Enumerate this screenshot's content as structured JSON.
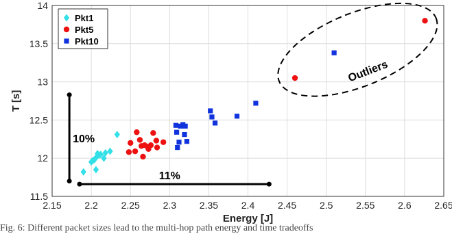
{
  "chart_data": {
    "type": "scatter",
    "xlabel": "Energy [J]",
    "ylabel": "T [s]",
    "xlim": [
      2.15,
      2.65
    ],
    "ylim": [
      11.5,
      14
    ],
    "xticks": [
      "2.15",
      "2.2",
      "2.25",
      "2.3",
      "2.35",
      "2.4",
      "2.45",
      "2.5",
      "2.55",
      "2.6",
      "2.65"
    ],
    "yticks": [
      "11.5",
      "12",
      "12.5",
      "13",
      "13.5",
      "14"
    ],
    "grid": true,
    "legend": "top-left",
    "series": [
      {
        "name": "Pkt1",
        "marker": "diamond",
        "color": "#33e0e8",
        "points": [
          [
            2.19,
            11.82
          ],
          [
            2.2,
            11.95
          ],
          [
            2.202,
            11.97
          ],
          [
            2.204,
            11.98
          ],
          [
            2.206,
            11.85
          ],
          [
            2.207,
            12.02
          ],
          [
            2.208,
            12.06
          ],
          [
            2.21,
            12.04
          ],
          [
            2.212,
            12.05
          ],
          [
            2.216,
            12.0
          ],
          [
            2.218,
            12.07
          ],
          [
            2.224,
            12.09
          ],
          [
            2.233,
            12.31
          ]
        ]
      },
      {
        "name": "Pkt5",
        "marker": "circle",
        "color": "#ee1111",
        "points": [
          [
            2.248,
            12.08
          ],
          [
            2.25,
            12.2
          ],
          [
            2.256,
            12.09
          ],
          [
            2.258,
            12.34
          ],
          [
            2.262,
            12.24
          ],
          [
            2.264,
            12.16
          ],
          [
            2.266,
            12.02
          ],
          [
            2.268,
            12.17
          ],
          [
            2.272,
            12.15
          ],
          [
            2.273,
            12.12
          ],
          [
            2.276,
            12.17
          ],
          [
            2.279,
            12.33
          ],
          [
            2.283,
            12.23
          ],
          [
            2.284,
            12.14
          ],
          [
            2.292,
            12.21
          ],
          [
            2.46,
            13.05
          ],
          [
            2.626,
            13.8
          ]
        ]
      },
      {
        "name": "Pkt10",
        "marker": "square",
        "color": "#1133dd",
        "points": [
          [
            2.308,
            12.43
          ],
          [
            2.309,
            12.34
          ],
          [
            2.31,
            12.14
          ],
          [
            2.312,
            12.21
          ],
          [
            2.314,
            12.42
          ],
          [
            2.317,
            12.44
          ],
          [
            2.319,
            12.31
          ],
          [
            2.32,
            12.42
          ],
          [
            2.322,
            12.22
          ],
          [
            2.352,
            12.62
          ],
          [
            2.354,
            12.54
          ],
          [
            2.358,
            12.46
          ],
          [
            2.386,
            12.55
          ],
          [
            2.41,
            12.72
          ],
          [
            2.51,
            13.38
          ]
        ]
      }
    ],
    "annotations": {
      "vertical_bracket": {
        "x": 2.172,
        "y1": 11.7,
        "y2": 12.83,
        "label": "10%"
      },
      "horizontal_bracket": {
        "y": 11.66,
        "x1": 2.185,
        "x2": 2.427,
        "label": "11%"
      },
      "ellipse": {
        "cx": 2.54,
        "cy": 13.42,
        "rx": 0.108,
        "ry": 0.48,
        "label": "Outliers"
      }
    }
  },
  "caption": "Fig. 6: Different packet sizes lead to the multi-hop path energy and time tradeoffs"
}
